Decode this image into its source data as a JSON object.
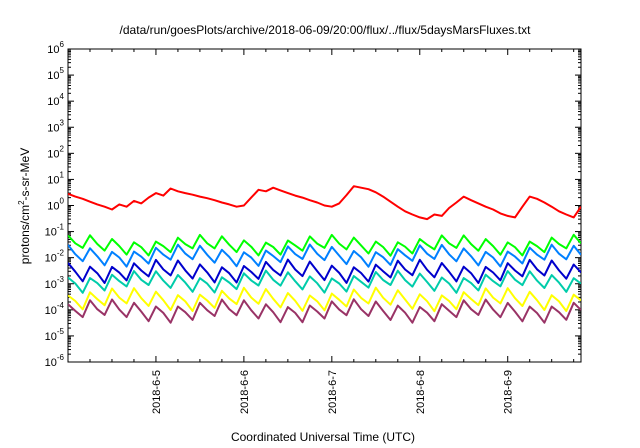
{
  "chart_data": {
    "type": "line",
    "title": "/data/run/goesPlots/archive/2018-06-09/20:00/flux/../flux/5daysMarsFluxes.txt",
    "xlabel": "Coordinated Universal Time (UTC)",
    "ylabel_parts": [
      "protons/cm",
      "2",
      "-s-sr-MeV"
    ],
    "y_scale": "log",
    "ylim": [
      1e-06,
      1000000.0
    ],
    "y_ticks": [
      {
        "base": "10",
        "exp": "-6",
        "value": 1e-06
      },
      {
        "base": "10",
        "exp": "-5",
        "value": 1e-05
      },
      {
        "base": "10",
        "exp": "-4",
        "value": 0.0001
      },
      {
        "base": "10",
        "exp": "-3",
        "value": 0.001
      },
      {
        "base": "10",
        "exp": "-2",
        "value": 0.01
      },
      {
        "base": "10",
        "exp": "-1",
        "value": 0.1
      },
      {
        "base": "10",
        "exp": "0",
        "value": 1
      },
      {
        "base": "10",
        "exp": "1",
        "value": 10
      },
      {
        "base": "10",
        "exp": "2",
        "value": 100
      },
      {
        "base": "10",
        "exp": "3",
        "value": 1000
      },
      {
        "base": "10",
        "exp": "4",
        "value": 10000
      },
      {
        "base": "10",
        "exp": "5",
        "value": 100000
      },
      {
        "base": "10",
        "exp": "6",
        "value": 1000000
      }
    ],
    "x_tick_labels": [
      "2018-6-5",
      "2018-6-6",
      "2018-6-7",
      "2018-6-8",
      "2018-6-9"
    ],
    "x_range": [
      "2018-06-04T00:00",
      "2018-06-09T20:00"
    ],
    "grid": false,
    "legend": "none",
    "series": [
      {
        "color": "#ff0000",
        "x": [
          "2018-06-04T00:00",
          "2018-06-04T02:00",
          "2018-06-04T04:00",
          "2018-06-04T06:00",
          "2018-06-04T08:00",
          "2018-06-04T10:00",
          "2018-06-04T12:00",
          "2018-06-04T14:00",
          "2018-06-04T16:00",
          "2018-06-04T18:00",
          "2018-06-04T20:00",
          "2018-06-04T22:00",
          "2018-06-05T00:00",
          "2018-06-05T02:00",
          "2018-06-05T04:00",
          "2018-06-05T06:00",
          "2018-06-05T08:00",
          "2018-06-05T10:00",
          "2018-06-05T12:00",
          "2018-06-05T14:00",
          "2018-06-05T16:00",
          "2018-06-05T18:00",
          "2018-06-05T20:00",
          "2018-06-05T22:00",
          "2018-06-06T00:00",
          "2018-06-06T02:00",
          "2018-06-06T04:00",
          "2018-06-06T06:00",
          "2018-06-06T08:00",
          "2018-06-06T10:00",
          "2018-06-06T12:00",
          "2018-06-06T14:00",
          "2018-06-06T16:00",
          "2018-06-06T18:00",
          "2018-06-06T20:00",
          "2018-06-06T22:00",
          "2018-06-07T00:00",
          "2018-06-07T02:00",
          "2018-06-07T04:00",
          "2018-06-07T06:00",
          "2018-06-07T08:00",
          "2018-06-07T10:00",
          "2018-06-07T12:00",
          "2018-06-07T14:00",
          "2018-06-07T16:00",
          "2018-06-07T18:00",
          "2018-06-07T20:00",
          "2018-06-07T22:00",
          "2018-06-08T00:00",
          "2018-06-08T02:00",
          "2018-06-08T04:00",
          "2018-06-08T06:00",
          "2018-06-08T08:00",
          "2018-06-08T10:00",
          "2018-06-08T12:00",
          "2018-06-08T14:00",
          "2018-06-08T16:00",
          "2018-06-08T18:00",
          "2018-06-08T20:00",
          "2018-06-08T22:00",
          "2018-06-09T00:00",
          "2018-06-09T02:00",
          "2018-06-09T04:00",
          "2018-06-09T06:00",
          "2018-06-09T08:00",
          "2018-06-09T10:00",
          "2018-06-09T12:00",
          "2018-06-09T14:00",
          "2018-06-09T16:00",
          "2018-06-09T18:00",
          "2018-06-09T20:00"
        ],
        "values": [
          2.8,
          2.2,
          1.8,
          1.4,
          1.1,
          0.9,
          0.7,
          1.1,
          0.9,
          1.5,
          1.2,
          2.0,
          3.0,
          2.4,
          4.5,
          3.5,
          3.0,
          2.6,
          2.2,
          1.9,
          1.6,
          1.3,
          1.1,
          0.9,
          1.0,
          2.0,
          4.0,
          3.5,
          4.8,
          3.8,
          3.0,
          2.4,
          2.0,
          1.6,
          1.3,
          1.0,
          0.9,
          1.2,
          2.5,
          5.5,
          4.8,
          4.2,
          3.2,
          2.2,
          1.4,
          0.9,
          0.6,
          0.45,
          0.35,
          0.3,
          0.45,
          0.4,
          0.8,
          1.3,
          2.2,
          1.6,
          1.2,
          0.9,
          0.7,
          0.5,
          0.4,
          0.35,
          0.9,
          2.2,
          1.8,
          1.3,
          0.9,
          0.6,
          0.45,
          0.35,
          0.9
        ]
      },
      {
        "color": "#00ff00",
        "baseline": 0.03,
        "amplitude": 0.5
      },
      {
        "color": "#0080ff",
        "baseline": 0.012,
        "amplitude": 0.55
      },
      {
        "color": "#0000cc",
        "baseline": 0.003,
        "amplitude": 0.6
      },
      {
        "color": "#00ccaa",
        "baseline": 0.0012,
        "amplitude": 0.55
      },
      {
        "color": "#ffff00",
        "baseline": 0.00025,
        "amplitude": 0.6
      },
      {
        "color": "#993366",
        "baseline": 9e-05,
        "amplitude": 0.6
      }
    ]
  }
}
